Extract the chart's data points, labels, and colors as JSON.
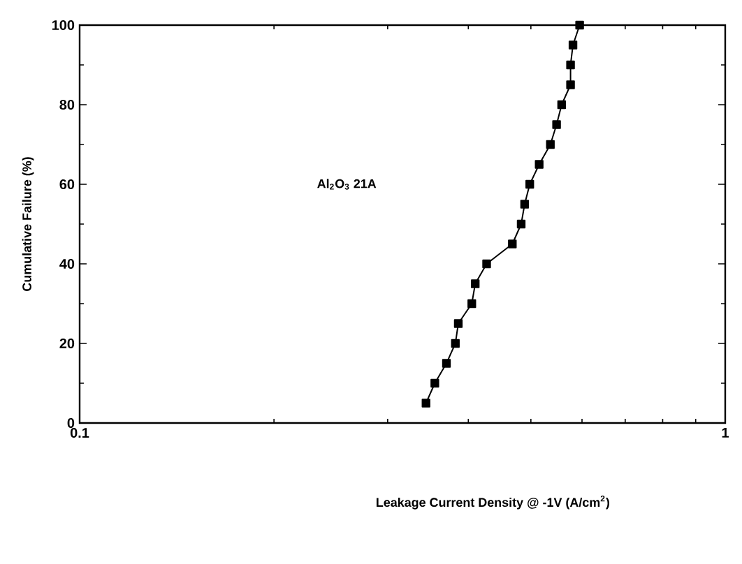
{
  "chart_data": {
    "type": "line",
    "xlabel": "Leakage Current Density @ -1V (A/cm$^{2}$)",
    "ylabel": "Cumulative Failure (%)",
    "annotations": [
      "Al$_{2}$O$_{3}$ 21A"
    ],
    "log": "x",
    "xlim": [
      0.1,
      1
    ],
    "xticks": [
      0.1,
      1
    ],
    "ylim": [
      0,
      100
    ],
    "yticks": [
      0,
      20,
      40,
      60,
      80,
      100
    ],
    "marker": "square",
    "line_style": "solid",
    "grid": false,
    "series": [
      {
        "color": "#000000",
        "x": [
          0.344,
          0.355,
          0.37,
          0.382,
          0.386,
          0.405,
          0.41,
          0.427,
          0.468,
          0.483,
          0.489,
          0.498,
          0.515,
          0.536,
          0.548,
          0.558,
          0.576,
          0.576,
          0.581,
          0.595
        ],
        "values": [
          5,
          10,
          15,
          20,
          25,
          30,
          35,
          40,
          45,
          50,
          55,
          60,
          65,
          70,
          75,
          80,
          85,
          90,
          95,
          100
        ]
      }
    ]
  }
}
